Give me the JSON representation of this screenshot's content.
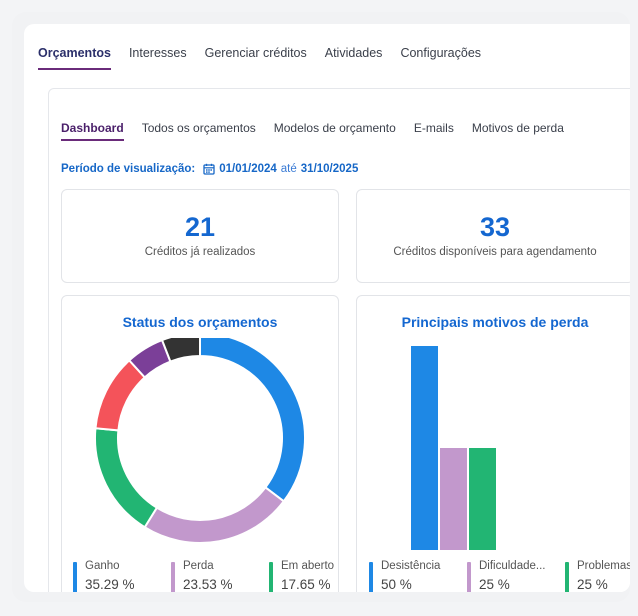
{
  "topnav": {
    "items": [
      "Orçamentos",
      "Interesses",
      "Gerenciar créditos",
      "Atividades",
      "Configurações"
    ]
  },
  "subnav": {
    "items": [
      "Dashboard",
      "Todos os orçamentos",
      "Modelos de orçamento",
      "E-mails",
      "Motivos de perda"
    ]
  },
  "period": {
    "label": "Período de visualização:",
    "start": "01/01/2024",
    "connector": "até",
    "end": "31/10/2025"
  },
  "stats": [
    {
      "value": "21",
      "label": "Créditos já realizados"
    },
    {
      "value": "33",
      "label": "Créditos disponíveis para agendamento"
    }
  ],
  "colors": {
    "blue": "#1e88e5",
    "lilac": "#c298cc",
    "green": "#22b573",
    "red": "#f4535a",
    "purple": "#7b3f98",
    "dark": "#333333"
  },
  "status_chart": {
    "title": "Status dos orçamentos",
    "legend": [
      {
        "name": "Ganho",
        "pct": "35.29 %"
      },
      {
        "name": "Perda",
        "pct": "23.53 %"
      },
      {
        "name": "Em aberto",
        "pct": "17.65 %"
      }
    ]
  },
  "loss_chart": {
    "title": "Principais motivos de perda",
    "legend": [
      {
        "name": "Desistência",
        "pct": "50 %"
      },
      {
        "name": "Dificuldade...",
        "pct": "25 %"
      },
      {
        "name": "Problemas...",
        "pct": "25 %"
      }
    ]
  },
  "chart_data": [
    {
      "type": "pie",
      "title": "Status dos orçamentos",
      "slices": [
        {
          "name": "Ganho",
          "value": 35.29,
          "color": "#1e88e5"
        },
        {
          "name": "Perda",
          "value": 23.53,
          "color": "#c298cc"
        },
        {
          "name": "Em aberto",
          "value": 17.65,
          "color": "#22b573"
        },
        {
          "value": 11.76,
          "color": "#f4535a"
        },
        {
          "value": 5.88,
          "color": "#7b3f98"
        },
        {
          "value": 5.88,
          "color": "#333333"
        }
      ]
    },
    {
      "type": "bar",
      "title": "Principais motivos de perda",
      "categories": [
        "Desistência",
        "Dificuldade...",
        "Problemas..."
      ],
      "values": [
        50,
        25,
        25
      ],
      "colors": [
        "#1e88e5",
        "#c298cc",
        "#22b573"
      ],
      "ylim": [
        0,
        50
      ]
    }
  ]
}
